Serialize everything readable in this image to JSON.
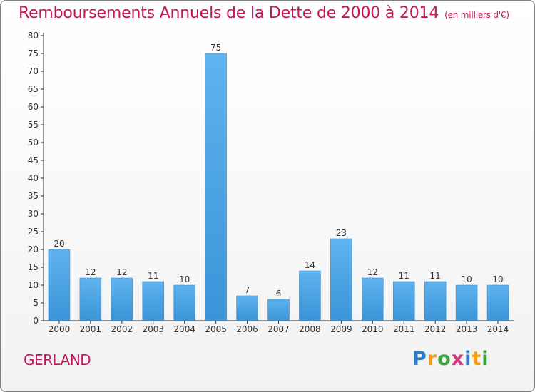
{
  "chart_data": {
    "type": "bar",
    "title": "Remboursements Annuels de la Dette de 2000 à 2014",
    "unit": "(en milliers d'€)",
    "categories": [
      "2000",
      "2001",
      "2002",
      "2003",
      "2004",
      "2005",
      "2006",
      "2007",
      "2008",
      "2009",
      "2010",
      "2011",
      "2012",
      "2013",
      "2014"
    ],
    "values": [
      20,
      12,
      12,
      11,
      10,
      75,
      7,
      6,
      14,
      23,
      12,
      11,
      11,
      10,
      10
    ],
    "ylim": [
      0,
      80
    ],
    "yticks": [
      0,
      5,
      10,
      15,
      20,
      25,
      30,
      35,
      40,
      45,
      50,
      55,
      60,
      65,
      70,
      75,
      80
    ],
    "grid": false,
    "bar_color": "#3a94d8",
    "label_color": "#333333"
  },
  "commune": "GERLAND",
  "logo": {
    "letters": [
      "P",
      "r",
      "o",
      "x",
      "i",
      "t",
      "i"
    ],
    "colors": [
      "#2e7bc4",
      "#f39c12",
      "#3aa63a",
      "#d43a7a",
      "#2e7bc4",
      "#f39c12",
      "#3aa63a"
    ]
  },
  "colors": {
    "accent": "#c2185b",
    "axis": "#333333"
  }
}
